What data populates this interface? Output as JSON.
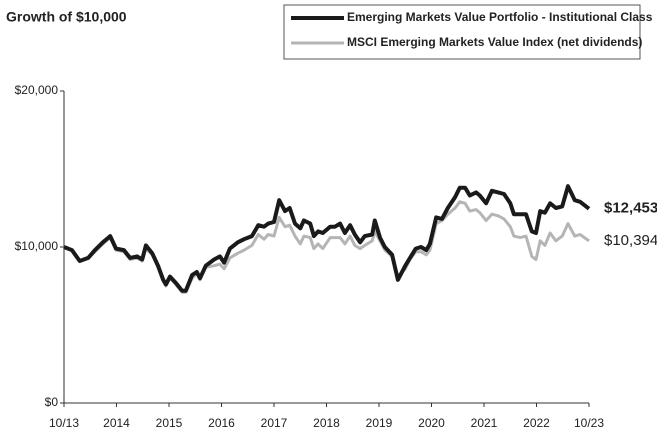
{
  "chart_data": {
    "type": "line",
    "title": "Growth of $10,000",
    "x": [
      2013.75,
      2013.9,
      2014.05,
      2014.21,
      2014.34,
      2014.49,
      2014.63,
      2014.74,
      2014.89,
      2015.01,
      2015.14,
      2015.24,
      2015.31,
      2015.43,
      2015.54,
      2015.64,
      2015.69,
      2015.77,
      2015.88,
      2016.0,
      2016.07,
      2016.19,
      2016.28,
      2016.34,
      2016.45,
      2016.61,
      2016.72,
      2016.8,
      2016.91,
      2017.06,
      2017.18,
      2017.33,
      2017.45,
      2017.56,
      2017.64,
      2017.75,
      2017.85,
      2017.96,
      2018.05,
      2018.15,
      2018.25,
      2018.32,
      2018.44,
      2018.51,
      2018.59,
      2018.68,
      2018.82,
      2018.91,
      2019.01,
      2019.1,
      2019.2,
      2019.29,
      2019.39,
      2019.48,
      2019.62,
      2019.67,
      2019.77,
      2019.86,
      2020.0,
      2020.11,
      2020.25,
      2020.34,
      2020.45,
      2020.55,
      2020.65,
      2020.72,
      2020.84,
      2020.95,
      2021.06,
      2021.2,
      2021.29,
      2021.39,
      2021.48,
      2021.6,
      2021.67,
      2021.79,
      2021.9,
      2022.02,
      2022.13,
      2022.25,
      2022.32,
      2022.44,
      2022.55,
      2022.66,
      2022.74,
      2022.82,
      2022.91,
      2023.01,
      2023.12,
      2023.24,
      2023.35,
      2023.48,
      2023.58,
      2023.75
    ],
    "series": [
      {
        "name": "MSCI Emerging Markets Value Index (net dividends)",
        "color": "#b5b5b5",
        "end_label": "$10,394",
        "values": [
          10000,
          9800,
          9100,
          9300,
          9700,
          10200,
          10600,
          9800,
          9700,
          9200,
          9300,
          9100,
          9900,
          9500,
          8700,
          7800,
          7500,
          8000,
          7600,
          7100,
          7100,
          8000,
          8300,
          7900,
          8700,
          8800,
          8900,
          8600,
          9300,
          9600,
          9800,
          10100,
          10800,
          10500,
          10800,
          10700,
          11900,
          11300,
          11400,
          10700,
          10200,
          10700,
          10600,
          9900,
          10200,
          9900,
          10600,
          10600,
          10600,
          10200,
          10700,
          10100,
          9900,
          10100,
          10400,
          11000,
          10400,
          9800,
          9400,
          8100,
          8600,
          9200,
          9700,
          9700,
          9500,
          9800,
          11500,
          11700,
          12100,
          12500,
          12900,
          12800,
          12300,
          12400,
          12200,
          11700,
          12100,
          12000,
          11800,
          11300,
          10700,
          10600,
          10700,
          9400,
          9200,
          10400,
          10100,
          10900,
          10400,
          10700,
          11500,
          10700,
          10800,
          10394
        ]
      },
      {
        "name": "Emerging Markets Value Portfolio - Institutional Class",
        "color": "#1a1a1a",
        "end_label": "$12,453",
        "values": [
          10000,
          9800,
          9100,
          9300,
          9800,
          10300,
          10700,
          9900,
          9800,
          9300,
          9400,
          9200,
          10100,
          9600,
          8800,
          7900,
          7600,
          8100,
          7700,
          7200,
          7200,
          8200,
          8400,
          8000,
          8800,
          9200,
          9400,
          9000,
          9900,
          10300,
          10500,
          10700,
          11400,
          11300,
          11500,
          11600,
          13000,
          12300,
          12500,
          11500,
          11200,
          11700,
          11500,
          10700,
          11000,
          10900,
          11300,
          11300,
          11500,
          10900,
          11400,
          10800,
          10300,
          10700,
          10800,
          11700,
          10600,
          10000,
          9500,
          7900,
          8800,
          9300,
          9900,
          10000,
          9800,
          10200,
          11900,
          11800,
          12500,
          13200,
          13800,
          13800,
          13300,
          13500,
          13300,
          12800,
          13600,
          13500,
          13400,
          12800,
          12100,
          12100,
          12100,
          11000,
          10900,
          12300,
          12200,
          12800,
          12500,
          12600,
          13900,
          13000,
          12900,
          12453
        ]
      }
    ],
    "xlim": [
      2013.75,
      2023.75
    ],
    "xticks": [
      {
        "value": 2013.75,
        "label": "10/13"
      },
      {
        "value": 2014.75,
        "label": "2014"
      },
      {
        "value": 2015.75,
        "label": "2015"
      },
      {
        "value": 2016.75,
        "label": "2016"
      },
      {
        "value": 2017.75,
        "label": "2017"
      },
      {
        "value": 2018.75,
        "label": "2018"
      },
      {
        "value": 2019.75,
        "label": "2019"
      },
      {
        "value": 2020.75,
        "label": "2020"
      },
      {
        "value": 2021.75,
        "label": "2021"
      },
      {
        "value": 2022.75,
        "label": "2022"
      },
      {
        "value": 2023.75,
        "label": "10/23"
      }
    ],
    "ylim": [
      0,
      20000
    ],
    "yticks": [
      {
        "value": 0,
        "label": "$0"
      },
      {
        "value": 10000,
        "label": "$10,000"
      },
      {
        "value": 20000,
        "label": "$20,000"
      }
    ],
    "legend": "top-right"
  }
}
